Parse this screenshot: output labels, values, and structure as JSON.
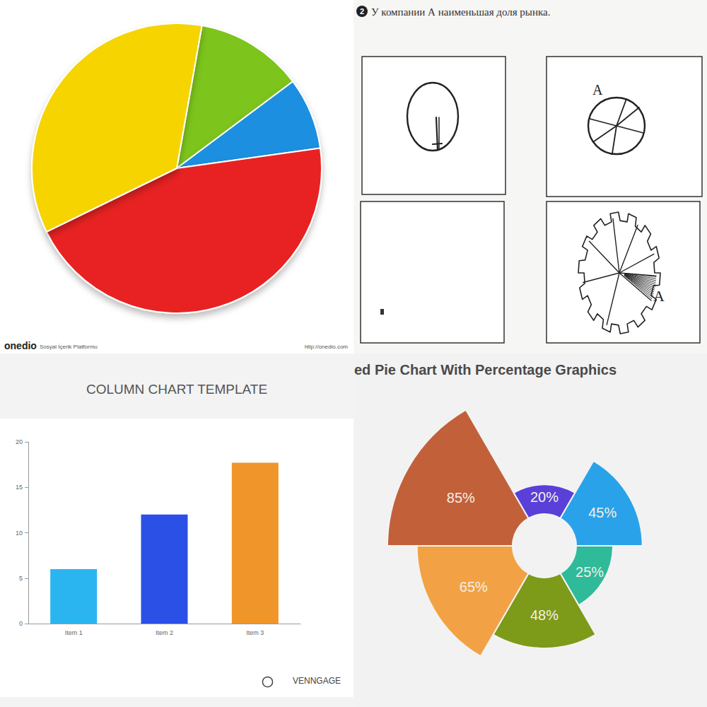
{
  "chart_data": [
    {
      "type": "pie",
      "values": [
        12,
        8,
        45,
        35
      ],
      "colors": [
        "#7dc41c",
        "#1e8fe0",
        "#e82420",
        "#f6d400"
      ],
      "annotations": [
        "onedio",
        "Sosyal İçerik Platformu",
        "http://onedio.com"
      ]
    },
    {
      "type": "bar",
      "title": "COLUMN CHART TEMPLATE",
      "categories": [
        "Item 1",
        "Item 2",
        "Item 3"
      ],
      "values": [
        6,
        12,
        17.7
      ],
      "colors": [
        "#2bb5f0",
        "#2a50e6",
        "#f0952a"
      ],
      "ylim": [
        0,
        20
      ],
      "yticks": [
        0,
        5,
        10,
        15,
        20
      ],
      "grid": false,
      "annotations": [
        "VENNGAGE"
      ]
    },
    {
      "type": "rose",
      "title": "ed Pie Chart With Percentage Graphics",
      "values": [
        85,
        20,
        45,
        25,
        48,
        65
      ],
      "value_labels": [
        "85%",
        "20%",
        "45%",
        "25%",
        "48%",
        "65%"
      ],
      "colors": [
        "#c2603a",
        "#5a3fd8",
        "#2aa2ea",
        "#2fba9a",
        "#7d9a18",
        "#f2a244"
      ],
      "data_labels": true
    }
  ],
  "sketch": {
    "number": 2,
    "title": "У компании А наименьшая доля рынка.",
    "labels": [
      "A",
      "A"
    ]
  }
}
